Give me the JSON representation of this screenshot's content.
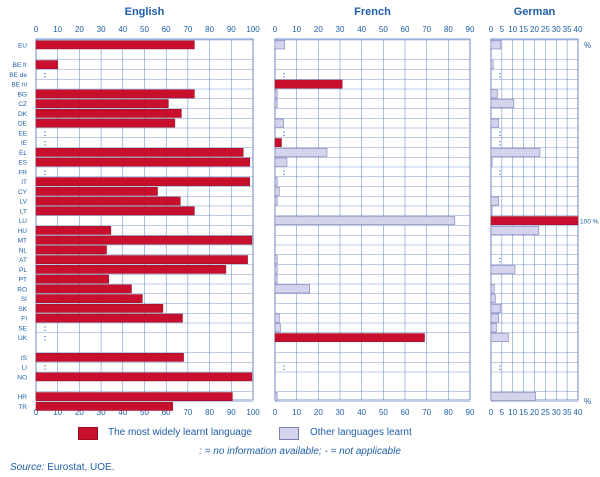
{
  "chart_data": {
    "type": "bar",
    "orientation": "horizontal",
    "categories": [
      "EU",
      "BE fr",
      "BE de",
      "BE nl",
      "BG",
      "CZ",
      "DK",
      "DE",
      "EE",
      "IE",
      "EL",
      "ES",
      "FR",
      "IT",
      "CY",
      "LV",
      "LT",
      "LU",
      "HU",
      "MT",
      "NL",
      "AT",
      "PL",
      "PT",
      "RO",
      "SI",
      "SK",
      "FI",
      "SE",
      "UK",
      "IS",
      "LI",
      "NO",
      "HR",
      "TR"
    ],
    "category_groups": [
      [
        "EU"
      ],
      [
        "BE fr",
        "BE de",
        "BE nl",
        "BG",
        "CZ",
        "DK",
        "DE",
        "EE",
        "IE",
        "EL",
        "ES",
        "FR",
        "IT",
        "CY",
        "LV",
        "LT",
        "LU",
        "HU",
        "MT",
        "NL",
        "AT",
        "PL",
        "PT",
        "RO",
        "SI",
        "SK",
        "FI",
        "SE",
        "UK"
      ],
      [
        "IS",
        "LI",
        "NO"
      ],
      [
        "HR",
        "TR"
      ]
    ],
    "legend": [
      "The most widely learnt language",
      "Other languages learnt"
    ],
    "colors": {
      "main": "#c8102e",
      "main_border": "#9a0c23",
      "other": "#d4d4ec",
      "other_border": "#7f7fb8",
      "text": "#1f5fa8",
      "grid": "#5b7fc4"
    },
    "unit_label": "%",
    "panels": [
      {
        "title": "English",
        "xlim": [
          0,
          100
        ],
        "ticks": [
          0,
          10,
          20,
          30,
          40,
          50,
          60,
          70,
          80,
          90,
          100
        ],
        "main": [
          73.0,
          10.0,
          null,
          0,
          73.0,
          61.0,
          67.0,
          64.0,
          null,
          null,
          95.5,
          98.5,
          null,
          98.5,
          56.0,
          66.5,
          73.0,
          0,
          34.5,
          99.5,
          32.5,
          97.5,
          87.5,
          33.5,
          44.0,
          49.0,
          58.5,
          67.5,
          null,
          null,
          68.0,
          null,
          99.5,
          90.5,
          63.0
        ],
        "other": [
          0,
          0,
          null,
          0,
          0,
          0,
          0,
          0,
          null,
          null,
          0,
          0,
          null,
          0,
          0,
          0,
          0,
          0,
          0,
          0,
          0,
          0,
          0,
          0,
          0,
          0,
          0,
          0,
          null,
          null,
          0,
          null,
          0,
          0,
          0
        ]
      },
      {
        "title": "French",
        "xlim": [
          0,
          90
        ],
        "ticks": [
          0,
          10,
          20,
          30,
          40,
          50,
          60,
          70,
          80,
          90
        ],
        "main": [
          0,
          0,
          null,
          31.0,
          0,
          0,
          0,
          0,
          null,
          3.0,
          0,
          0,
          null,
          0,
          0,
          0,
          0,
          0,
          0,
          0,
          0,
          0,
          0,
          0,
          0,
          0,
          0,
          0,
          0,
          69.0,
          0,
          null,
          0,
          0,
          0
        ],
        "other": [
          4.5,
          0,
          null,
          0,
          1.0,
          1.0,
          0,
          4.0,
          null,
          0,
          24.0,
          5.5,
          null,
          1.0,
          2.0,
          1.0,
          0,
          83.0,
          0,
          0,
          0,
          1.0,
          1.0,
          1.0,
          16.0,
          0,
          0,
          2.0,
          2.5,
          0,
          0,
          null,
          0,
          1.0,
          0
        ]
      },
      {
        "title": "German",
        "xlim": [
          0,
          40
        ],
        "ticks": [
          0,
          5,
          10,
          15,
          20,
          25,
          30,
          35,
          40
        ],
        "main": [
          0,
          0,
          null,
          0,
          0,
          0,
          0,
          0,
          null,
          null,
          0,
          0,
          null,
          0,
          0,
          0,
          0,
          40.0,
          0,
          0,
          0,
          null,
          0,
          0,
          0,
          0,
          0,
          0,
          0,
          0,
          0,
          null,
          0,
          0,
          0
        ],
        "other": [
          4.5,
          1.0,
          null,
          0,
          3.0,
          10.5,
          0,
          3.5,
          null,
          null,
          22.5,
          0.5,
          null,
          0,
          0,
          3.5,
          0.5,
          0,
          22.0,
          0,
          0,
          null,
          11.0,
          0,
          1.5,
          2.0,
          4.5,
          3.5,
          2.5,
          8.0,
          0,
          null,
          0,
          20.5,
          0
        ],
        "annotations": [
          {
            "category": "LU",
            "text": "100 %"
          }
        ]
      }
    ],
    "x_unit_label": "%"
  },
  "legend": {
    "main_label": "The most widely learnt language",
    "other_label": "Other languages learnt"
  },
  "note": ": = no information available; - = not applicable",
  "source_label": "Source:",
  "source_text": " Eurostat, UOE.",
  "not_available_marker": ":"
}
